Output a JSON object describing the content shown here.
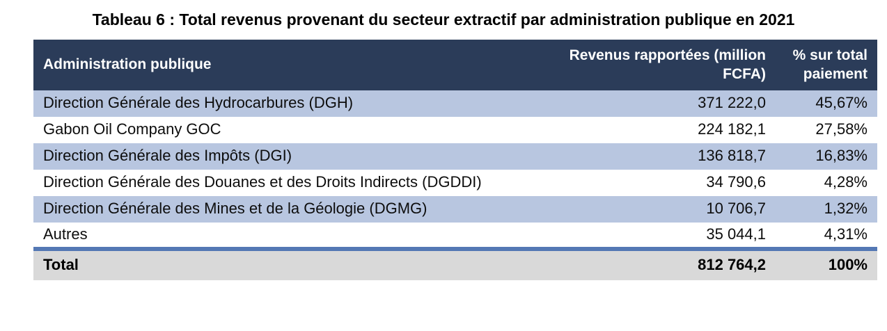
{
  "title": "Tableau 6 : Total revenus provenant du secteur extractif par administration publique en 2021",
  "table": {
    "columns": {
      "administration": "Administration publique",
      "revenue": "Revenus rapportées (million FCFA)",
      "percent": "% sur total paiement"
    },
    "rows": [
      {
        "label": "Direction Générale des Hydrocarbures (DGH)",
        "revenue": "371 222,0",
        "percent": "45,67%"
      },
      {
        "label": "Gabon Oil Company GOC",
        "revenue": "224 182,1",
        "percent": "27,58%"
      },
      {
        "label": "Direction Générale des Impôts (DGI)",
        "revenue": "136 818,7",
        "percent": "16,83%"
      },
      {
        "label": "Direction Générale des Douanes et des Droits Indirects (DGDDI)",
        "revenue": "34 790,6",
        "percent": "4,28%"
      },
      {
        "label": "Direction Générale des Mines et de la Géologie (DGMG)",
        "revenue": "10 706,7",
        "percent": "1,32%"
      },
      {
        "label": "Autres",
        "revenue": "35 044,1",
        "percent": "4,31%"
      }
    ],
    "total": {
      "label": "Total",
      "revenue": "812 764,2",
      "percent": "100%"
    }
  },
  "colors": {
    "header_bg": "#2b3c59",
    "header_text": "#ffffff",
    "row_alt_bg": "#b8c6e0",
    "row_bg": "#ffffff",
    "total_bg": "#d9d9d9",
    "total_top_border": "#5478b4",
    "body_text": "#0d0d0d"
  },
  "chart_data": {
    "type": "table",
    "title": "Tableau 6 : Total revenus provenant du secteur extractif par administration publique en 2021",
    "columns": [
      "Administration publique",
      "Revenus rapportées (million FCFA)",
      "% sur total paiement"
    ],
    "rows": [
      [
        "Direction Générale des Hydrocarbures (DGH)",
        371222.0,
        45.67
      ],
      [
        "Gabon Oil Company GOC",
        224182.1,
        27.58
      ],
      [
        "Direction Générale des Impôts (DGI)",
        136818.7,
        16.83
      ],
      [
        "Direction Générale des Douanes et des Droits Indirects (DGDDI)",
        34790.6,
        4.28
      ],
      [
        "Direction Générale des Mines et de la Géologie (DGMG)",
        10706.7,
        1.32
      ],
      [
        "Autres",
        35044.1,
        4.31
      ]
    ],
    "total_row": [
      "Total",
      812764.2,
      100
    ]
  }
}
